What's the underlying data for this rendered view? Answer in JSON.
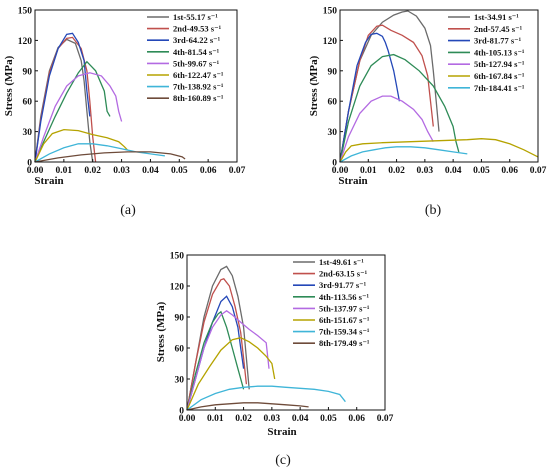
{
  "chart_data": [
    {
      "type": "line",
      "panel_label": "(a)",
      "xlabel": "Strain",
      "ylabel": "Stress (MPa)",
      "xlim": [
        0,
        0.07
      ],
      "ylim": [
        0,
        150
      ],
      "xticks": [
        "0.00",
        "0.01",
        "0.02",
        "0.03",
        "0.04",
        "0.05",
        "0.06",
        "0.07"
      ],
      "yticks": [
        "0",
        "30",
        "60",
        "90",
        "120",
        "150"
      ],
      "legend_position": "top-right",
      "series": [
        {
          "name": "1st-55.17 s⁻¹",
          "color": "#6b6b6b",
          "x": [
            0,
            0.002,
            0.005,
            0.008,
            0.011,
            0.014,
            0.016,
            0.017,
            0.018,
            0.019,
            0.02
          ],
          "y": [
            0,
            45,
            90,
            113,
            121,
            117,
            100,
            80,
            50,
            20,
            0
          ]
        },
        {
          "name": "2nd-49.53 s⁻¹",
          "color": "#c0504d",
          "x": [
            0,
            0.002,
            0.005,
            0.008,
            0.011,
            0.013,
            0.016,
            0.018,
            0.019,
            0.02,
            0.021
          ],
          "y": [
            0,
            42,
            88,
            112,
            122,
            123,
            112,
            90,
            60,
            25,
            0
          ]
        },
        {
          "name": "3rd-64.22 s⁻¹",
          "color": "#2448b8",
          "x": [
            0,
            0.002,
            0.005,
            0.008,
            0.011,
            0.013,
            0.015,
            0.017,
            0.018,
            0.019
          ],
          "y": [
            0,
            40,
            85,
            112,
            126,
            127,
            118,
            100,
            70,
            45
          ]
        },
        {
          "name": "4th-81.54 s⁻¹",
          "color": "#2e8b57",
          "x": [
            0,
            0.003,
            0.007,
            0.011,
            0.015,
            0.018,
            0.021,
            0.024,
            0.025,
            0.026
          ],
          "y": [
            0,
            20,
            45,
            68,
            88,
            99,
            90,
            70,
            50,
            45
          ]
        },
        {
          "name": "5th-99.67 s⁻¹",
          "color": "#b36ae2",
          "x": [
            0,
            0.003,
            0.007,
            0.011,
            0.015,
            0.019,
            0.023,
            0.026,
            0.028,
            0.029,
            0.03
          ],
          "y": [
            0,
            25,
            55,
            75,
            85,
            88,
            85,
            75,
            65,
            50,
            40
          ]
        },
        {
          "name": "6th-122.47 s⁻¹",
          "color": "#b5a300",
          "x": [
            0,
            0.003,
            0.006,
            0.01,
            0.015,
            0.02,
            0.025,
            0.029,
            0.031,
            0.032
          ],
          "y": [
            0,
            18,
            28,
            32,
            31,
            27,
            24,
            20,
            15,
            12
          ]
        },
        {
          "name": "7th-138.92 s⁻¹",
          "color": "#3fb5d8",
          "x": [
            0,
            0.005,
            0.01,
            0.015,
            0.02,
            0.025,
            0.03,
            0.035,
            0.04,
            0.045
          ],
          "y": [
            0,
            8,
            14,
            18,
            18,
            16,
            13,
            10,
            8,
            6
          ]
        },
        {
          "name": "8th-160.89 s⁻¹",
          "color": "#6e4b3a",
          "x": [
            0,
            0.008,
            0.016,
            0.024,
            0.032,
            0.04,
            0.047,
            0.051,
            0.052
          ],
          "y": [
            0,
            4,
            7,
            9,
            10,
            10,
            8,
            5,
            3
          ]
        }
      ]
    },
    {
      "type": "line",
      "panel_label": "(b)",
      "xlabel": "Strain",
      "ylabel": "Stress (MPa)",
      "xlim": [
        0,
        0.07
      ],
      "ylim": [
        0,
        150
      ],
      "xticks": [
        "0.00",
        "0.01",
        "0.02",
        "0.03",
        "0.04",
        "0.05",
        "0.06",
        "0.07"
      ],
      "yticks": [
        "0",
        "30",
        "60",
        "90",
        "120",
        "150"
      ],
      "legend_position": "top-right",
      "series": [
        {
          "name": "1st-34.91 s⁻¹",
          "color": "#6b6b6b",
          "x": [
            0,
            0.003,
            0.007,
            0.011,
            0.015,
            0.019,
            0.022,
            0.024,
            0.027,
            0.03,
            0.032,
            0.033,
            0.034,
            0.035
          ],
          "y": [
            0,
            50,
            100,
            125,
            138,
            145,
            148,
            149,
            144,
            132,
            115,
            90,
            60,
            30
          ]
        },
        {
          "name": "2nd-57.45 s⁻¹",
          "color": "#c0504d",
          "x": [
            0,
            0.003,
            0.007,
            0.01,
            0.013,
            0.015,
            0.018,
            0.022,
            0.026,
            0.029,
            0.031,
            0.032,
            0.033
          ],
          "y": [
            0,
            50,
            100,
            125,
            134,
            135,
            130,
            125,
            118,
            105,
            85,
            60,
            35
          ]
        },
        {
          "name": "3rd-81.77 s⁻¹",
          "color": "#2448b8",
          "x": [
            0,
            0.003,
            0.006,
            0.009,
            0.011,
            0.013,
            0.015,
            0.016,
            0.017,
            0.018,
            0.019,
            0.02,
            0.021
          ],
          "y": [
            0,
            50,
            95,
            118,
            126,
            127,
            124,
            118,
            110,
            100,
            90,
            75,
            60
          ]
        },
        {
          "name": "4th-105.13 s⁻¹",
          "color": "#2e8b57",
          "x": [
            0,
            0.003,
            0.007,
            0.011,
            0.015,
            0.019,
            0.023,
            0.028,
            0.033,
            0.037,
            0.04,
            0.041,
            0.042
          ],
          "y": [
            0,
            40,
            75,
            95,
            104,
            106,
            101,
            90,
            75,
            55,
            35,
            20,
            10
          ]
        },
        {
          "name": "5th-127.94 s⁻¹",
          "color": "#b36ae2",
          "x": [
            0,
            0.003,
            0.007,
            0.011,
            0.015,
            0.018,
            0.022,
            0.026,
            0.029,
            0.031,
            0.033
          ],
          "y": [
            0,
            25,
            48,
            60,
            65,
            65,
            60,
            52,
            42,
            30,
            20
          ]
        },
        {
          "name": "6th-167.84 s⁻¹",
          "color": "#b5a300",
          "x": [
            0,
            0.002,
            0.004,
            0.008,
            0.015,
            0.025,
            0.035,
            0.045,
            0.05,
            0.055,
            0.06,
            0.065,
            0.07
          ],
          "y": [
            0,
            10,
            16,
            18,
            19,
            20,
            21,
            22,
            23,
            22,
            18,
            12,
            5
          ]
        },
        {
          "name": "7th-184.41 s⁻¹",
          "color": "#3fb5d8",
          "x": [
            0,
            0.004,
            0.008,
            0.012,
            0.016,
            0.02,
            0.025,
            0.03,
            0.035,
            0.04,
            0.045
          ],
          "y": [
            0,
            6,
            10,
            12,
            14,
            15,
            15,
            14,
            12,
            10,
            8
          ]
        }
      ]
    },
    {
      "type": "line",
      "panel_label": "(c)",
      "xlabel": "Strain",
      "ylabel": "Stress (MPa)",
      "xlim": [
        0,
        0.07
      ],
      "ylim": [
        0,
        150
      ],
      "xticks": [
        "0.00",
        "0.01",
        "0.02",
        "0.03",
        "0.04",
        "0.05",
        "0.06",
        "0.07"
      ],
      "yticks": [
        "0",
        "30",
        "60",
        "90",
        "120",
        "150"
      ],
      "legend_position": "top-right",
      "series": [
        {
          "name": "1st-49.61 s⁻¹",
          "color": "#6b6b6b",
          "x": [
            0,
            0.003,
            0.006,
            0.009,
            0.012,
            0.014,
            0.016,
            0.018,
            0.02,
            0.021,
            0.022
          ],
          "y": [
            0,
            45,
            90,
            120,
            136,
            139,
            130,
            110,
            80,
            50,
            20
          ]
        },
        {
          "name": "2nd-63.15 s⁻¹",
          "color": "#c0504d",
          "x": [
            0,
            0.003,
            0.006,
            0.009,
            0.012,
            0.013,
            0.015,
            0.017,
            0.019,
            0.02,
            0.021
          ],
          "y": [
            0,
            45,
            85,
            112,
            126,
            127,
            120,
            100,
            75,
            50,
            25
          ]
        },
        {
          "name": "3rd-91.77 s⁻¹",
          "color": "#2448b8",
          "x": [
            0,
            0.003,
            0.006,
            0.009,
            0.012,
            0.014,
            0.016,
            0.018,
            0.019,
            0.02
          ],
          "y": [
            0,
            30,
            60,
            85,
            105,
            110,
            100,
            80,
            60,
            40
          ]
        },
        {
          "name": "4th-113.56 s⁻¹",
          "color": "#2e8b57",
          "x": [
            0,
            0.003,
            0.006,
            0.009,
            0.011,
            0.012,
            0.014,
            0.016,
            0.018,
            0.02
          ],
          "y": [
            0,
            35,
            65,
            85,
            93,
            95,
            80,
            60,
            40,
            20
          ]
        },
        {
          "name": "5th-137.97 s⁻¹",
          "color": "#b36ae2",
          "x": [
            0,
            0.003,
            0.006,
            0.009,
            0.012,
            0.014,
            0.016,
            0.019,
            0.022,
            0.025,
            0.028,
            0.029
          ],
          "y": [
            0,
            30,
            60,
            80,
            92,
            96,
            92,
            85,
            78,
            72,
            65,
            40
          ]
        },
        {
          "name": "6th-151.67 s⁻¹",
          "color": "#b5a300",
          "x": [
            0,
            0.004,
            0.008,
            0.012,
            0.016,
            0.019,
            0.022,
            0.025,
            0.028,
            0.03,
            0.031
          ],
          "y": [
            0,
            25,
            42,
            58,
            68,
            70,
            66,
            60,
            52,
            45,
            30
          ]
        },
        {
          "name": "7th-159.34 s⁻¹",
          "color": "#3fb5d8",
          "x": [
            0,
            0.005,
            0.01,
            0.015,
            0.02,
            0.025,
            0.03,
            0.035,
            0.04,
            0.045,
            0.05,
            0.054,
            0.056
          ],
          "y": [
            0,
            10,
            16,
            20,
            22,
            23,
            23,
            22,
            21,
            20,
            18,
            15,
            8
          ]
        },
        {
          "name": "8th-179.49 s⁻¹",
          "color": "#6e4b3a",
          "x": [
            0,
            0.005,
            0.01,
            0.015,
            0.02,
            0.025,
            0.03,
            0.035,
            0.04,
            0.043
          ],
          "y": [
            0,
            3,
            5,
            6,
            7,
            7,
            6,
            5,
            4,
            3
          ]
        }
      ]
    }
  ]
}
